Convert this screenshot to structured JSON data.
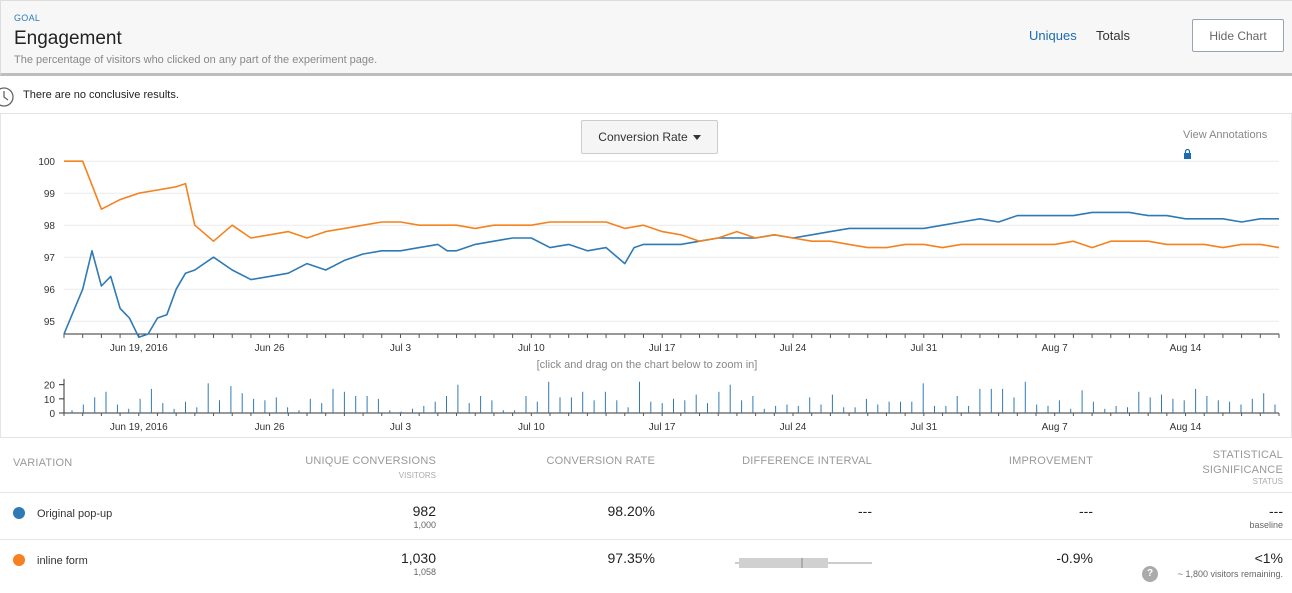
{
  "header": {
    "goal_tag": "GOAL",
    "title": "Engagement",
    "description": "The percentage of visitors who clicked on any part of the experiment page.",
    "uniques_label": "Uniques",
    "totals_label": "Totals",
    "hide_chart_label": "Hide Chart"
  },
  "notice": {
    "text": "There are no conclusive results.",
    "icon": "clock-icon"
  },
  "chart_controls": {
    "metric_label": "Conversion Rate",
    "view_annotations": "View Annotations",
    "zoom_hint": "[click and drag on the chart below to zoom in]"
  },
  "colors": {
    "original": "#2f7ab5",
    "variant": "#f5821f",
    "accent": "#1a6bb0"
  },
  "chart_data": [
    {
      "type": "line",
      "x_ticks": [
        "Jun 19, 2016",
        "Jun 26",
        "Jul 3",
        "Jul 10",
        "Jul 17",
        "Jul 24",
        "Jul 31",
        "Aug 7",
        "Aug 14"
      ],
      "y_ticks": [
        95,
        96,
        97,
        98,
        99,
        100
      ],
      "ylim": [
        94.6,
        100.1
      ],
      "xlim": [
        "2016-06-15",
        "2016-08-19"
      ],
      "grid": true,
      "series": [
        {
          "name": "Original pop-up",
          "color": "#2f7ab5",
          "points": [
            [
              "2016-06-15",
              94.6
            ],
            [
              "2016-06-16",
              96.0
            ],
            [
              "2016-06-16T12",
              97.2
            ],
            [
              "2016-06-17",
              96.1
            ],
            [
              "2016-06-17T12",
              96.4
            ],
            [
              "2016-06-18",
              95.4
            ],
            [
              "2016-06-18T12",
              95.1
            ],
            [
              "2016-06-19",
              94.5
            ],
            [
              "2016-06-19T12",
              94.6
            ],
            [
              "2016-06-20",
              95.1
            ],
            [
              "2016-06-20T12",
              95.2
            ],
            [
              "2016-06-21",
              96.0
            ],
            [
              "2016-06-21T12",
              96.5
            ],
            [
              "2016-06-22",
              96.6
            ],
            [
              "2016-06-23",
              97.0
            ],
            [
              "2016-06-24",
              96.6
            ],
            [
              "2016-06-25",
              96.3
            ],
            [
              "2016-06-26",
              96.4
            ],
            [
              "2016-06-27",
              96.5
            ],
            [
              "2016-06-28",
              96.8
            ],
            [
              "2016-06-29",
              96.6
            ],
            [
              "2016-06-30",
              96.9
            ],
            [
              "2016-07-01",
              97.1
            ],
            [
              "2016-07-02",
              97.2
            ],
            [
              "2016-07-03",
              97.2
            ],
            [
              "2016-07-04",
              97.3
            ],
            [
              "2016-07-05",
              97.4
            ],
            [
              "2016-07-05T12",
              97.2
            ],
            [
              "2016-07-06",
              97.2
            ],
            [
              "2016-07-07",
              97.4
            ],
            [
              "2016-07-08",
              97.5
            ],
            [
              "2016-07-09",
              97.6
            ],
            [
              "2016-07-10",
              97.6
            ],
            [
              "2016-07-11",
              97.3
            ],
            [
              "2016-07-12",
              97.4
            ],
            [
              "2016-07-13",
              97.2
            ],
            [
              "2016-07-14",
              97.3
            ],
            [
              "2016-07-15",
              96.8
            ],
            [
              "2016-07-15T12",
              97.3
            ],
            [
              "2016-07-16",
              97.4
            ],
            [
              "2016-07-17",
              97.4
            ],
            [
              "2016-07-18",
              97.4
            ],
            [
              "2016-07-19",
              97.5
            ],
            [
              "2016-07-20",
              97.6
            ],
            [
              "2016-07-21",
              97.6
            ],
            [
              "2016-07-22",
              97.6
            ],
            [
              "2016-07-23",
              97.7
            ],
            [
              "2016-07-24",
              97.6
            ],
            [
              "2016-07-25",
              97.7
            ],
            [
              "2016-07-26",
              97.8
            ],
            [
              "2016-07-27",
              97.9
            ],
            [
              "2016-07-28",
              97.9
            ],
            [
              "2016-07-29",
              97.9
            ],
            [
              "2016-07-30",
              97.9
            ],
            [
              "2016-07-31",
              97.9
            ],
            [
              "2016-08-01",
              98.0
            ],
            [
              "2016-08-02",
              98.1
            ],
            [
              "2016-08-03",
              98.2
            ],
            [
              "2016-08-04",
              98.1
            ],
            [
              "2016-08-05",
              98.3
            ],
            [
              "2016-08-06",
              98.3
            ],
            [
              "2016-08-07",
              98.3
            ],
            [
              "2016-08-08",
              98.3
            ],
            [
              "2016-08-09",
              98.4
            ],
            [
              "2016-08-10",
              98.4
            ],
            [
              "2016-08-11",
              98.4
            ],
            [
              "2016-08-12",
              98.3
            ],
            [
              "2016-08-13",
              98.3
            ],
            [
              "2016-08-14",
              98.2
            ],
            [
              "2016-08-15",
              98.2
            ],
            [
              "2016-08-16",
              98.2
            ],
            [
              "2016-08-17",
              98.1
            ],
            [
              "2016-08-18",
              98.2
            ],
            [
              "2016-08-19",
              98.2
            ]
          ]
        },
        {
          "name": "inline form",
          "color": "#f5821f",
          "points": [
            [
              "2016-06-15",
              100.0
            ],
            [
              "2016-06-16",
              100.0
            ],
            [
              "2016-06-17",
              98.5
            ],
            [
              "2016-06-18",
              98.8
            ],
            [
              "2016-06-19",
              99.0
            ],
            [
              "2016-06-20",
              99.1
            ],
            [
              "2016-06-21",
              99.2
            ],
            [
              "2016-06-21T12",
              99.3
            ],
            [
              "2016-06-22",
              98.0
            ],
            [
              "2016-06-23",
              97.5
            ],
            [
              "2016-06-24",
              98.0
            ],
            [
              "2016-06-25",
              97.6
            ],
            [
              "2016-06-26",
              97.7
            ],
            [
              "2016-06-27",
              97.8
            ],
            [
              "2016-06-28",
              97.6
            ],
            [
              "2016-06-29",
              97.8
            ],
            [
              "2016-06-30",
              97.9
            ],
            [
              "2016-07-01",
              98.0
            ],
            [
              "2016-07-02",
              98.1
            ],
            [
              "2016-07-03",
              98.1
            ],
            [
              "2016-07-04",
              98.0
            ],
            [
              "2016-07-05",
              98.0
            ],
            [
              "2016-07-06",
              98.0
            ],
            [
              "2016-07-07",
              97.9
            ],
            [
              "2016-07-08",
              98.0
            ],
            [
              "2016-07-09",
              98.0
            ],
            [
              "2016-07-10",
              98.0
            ],
            [
              "2016-07-11",
              98.1
            ],
            [
              "2016-07-12",
              98.1
            ],
            [
              "2016-07-13",
              98.1
            ],
            [
              "2016-07-14",
              98.1
            ],
            [
              "2016-07-15",
              97.9
            ],
            [
              "2016-07-16",
              98.0
            ],
            [
              "2016-07-17",
              97.8
            ],
            [
              "2016-07-18",
              97.7
            ],
            [
              "2016-07-19",
              97.5
            ],
            [
              "2016-07-20",
              97.6
            ],
            [
              "2016-07-21",
              97.8
            ],
            [
              "2016-07-22",
              97.6
            ],
            [
              "2016-07-23",
              97.7
            ],
            [
              "2016-07-24",
              97.6
            ],
            [
              "2016-07-25",
              97.5
            ],
            [
              "2016-07-26",
              97.5
            ],
            [
              "2016-07-27",
              97.4
            ],
            [
              "2016-07-28",
              97.3
            ],
            [
              "2016-07-29",
              97.3
            ],
            [
              "2016-07-30",
              97.4
            ],
            [
              "2016-07-31",
              97.4
            ],
            [
              "2016-08-01",
              97.3
            ],
            [
              "2016-08-02",
              97.4
            ],
            [
              "2016-08-03",
              97.4
            ],
            [
              "2016-08-04",
              97.4
            ],
            [
              "2016-08-05",
              97.4
            ],
            [
              "2016-08-06",
              97.4
            ],
            [
              "2016-08-07",
              97.4
            ],
            [
              "2016-08-08",
              97.5
            ],
            [
              "2016-08-09",
              97.3
            ],
            [
              "2016-08-10",
              97.5
            ],
            [
              "2016-08-11",
              97.5
            ],
            [
              "2016-08-12",
              97.5
            ],
            [
              "2016-08-13",
              97.4
            ],
            [
              "2016-08-14",
              97.4
            ],
            [
              "2016-08-15",
              97.4
            ],
            [
              "2016-08-16",
              97.3
            ],
            [
              "2016-08-17",
              97.4
            ],
            [
              "2016-08-18",
              97.4
            ],
            [
              "2016-08-19",
              97.3
            ]
          ]
        }
      ]
    },
    {
      "type": "bar",
      "x_ticks": [
        "Jun 19, 2016",
        "Jun 26",
        "Jul 3",
        "Jul 10",
        "Jul 17",
        "Jul 24",
        "Jul 31",
        "Aug 7",
        "Aug 14"
      ],
      "y_ticks": [
        0,
        10,
        20
      ],
      "ylim": [
        0,
        24
      ],
      "xlim": [
        "2016-06-15",
        "2016-08-19"
      ],
      "values": [
        2,
        6,
        11,
        15,
        6,
        3,
        10,
        17,
        7,
        3,
        8,
        4,
        21,
        9,
        19,
        14,
        10,
        9,
        11,
        4,
        2,
        10,
        7,
        17,
        15,
        12,
        12,
        10,
        2,
        1,
        3,
        5,
        8,
        12,
        20,
        7,
        12,
        9,
        2,
        2,
        12,
        8,
        22,
        11,
        11,
        15,
        9,
        15,
        9,
        4,
        22,
        8,
        7,
        10,
        9,
        13,
        7,
        15,
        20,
        9,
        12,
        3,
        5,
        6,
        5,
        11,
        6,
        13,
        4,
        4,
        10,
        6,
        8,
        8,
        8,
        21,
        5,
        5,
        12,
        5,
        17,
        17,
        17,
        11,
        22,
        6,
        5,
        9,
        3,
        16,
        8,
        3,
        5,
        4,
        15,
        11,
        13,
        10,
        9,
        17,
        12,
        9,
        8,
        6,
        10,
        14,
        6
      ]
    }
  ],
  "table": {
    "headers": {
      "variation": "VARIATION",
      "unique_conversions": "UNIQUE CONVERSIONS",
      "visitors": "VISITORS",
      "conversion_rate": "CONVERSION RATE",
      "difference_interval": "DIFFERENCE INTERVAL",
      "improvement": "IMPROVEMENT",
      "stat_sig_1": "STATISTICAL",
      "stat_sig_2": "SIGNIFICANCE",
      "status": "STATUS"
    },
    "rows": [
      {
        "name": "Original pop-up",
        "color": "#2f7ab5",
        "conversions": "982",
        "visitors": "1,000",
        "rate": "98.20%",
        "interval": "---",
        "improvement": "---",
        "significance": "---",
        "status": "baseline"
      },
      {
        "name": "inline form",
        "color": "#f5821f",
        "conversions": "1,030",
        "visitors": "1,058",
        "rate": "97.35%",
        "improvement": "-0.9%",
        "significance": "<1%",
        "help": "?",
        "status": "~ 1,800 visitors remaining."
      }
    ]
  }
}
